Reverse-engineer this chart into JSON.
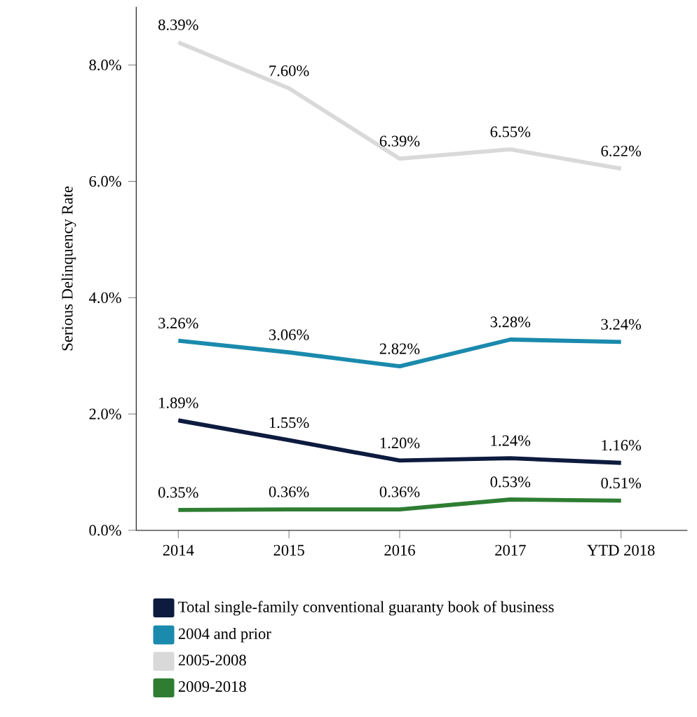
{
  "chart_data": {
    "type": "line",
    "ylabel": "Serious Delinquency Rate",
    "categories": [
      "2014",
      "2015",
      "2016",
      "2017",
      "YTD 2018"
    ],
    "ylim": [
      0,
      9.0
    ],
    "yticks": [
      {
        "value": 0,
        "label": "0.0%"
      },
      {
        "value": 2,
        "label": "2.0%"
      },
      {
        "value": 4,
        "label": "4.0%"
      },
      {
        "value": 6,
        "label": "6.0%"
      },
      {
        "value": 8,
        "label": "8.0%"
      }
    ],
    "series": [
      {
        "name": "Total single-family conventional guaranty book of business",
        "color": "#0d1b3e",
        "values": [
          1.89,
          1.55,
          1.2,
          1.24,
          1.16
        ],
        "value_labels": [
          "1.89%",
          "1.55%",
          "1.20%",
          "1.24%",
          "1.16%"
        ]
      },
      {
        "name": "2004 and prior",
        "color": "#1a8aad",
        "values": [
          3.26,
          3.06,
          2.82,
          3.28,
          3.24
        ],
        "value_labels": [
          "3.26%",
          "3.06%",
          "2.82%",
          "3.28%",
          "3.24%"
        ]
      },
      {
        "name": "2005-2008",
        "color": "#d9d9d9",
        "values": [
          8.39,
          7.6,
          6.39,
          6.55,
          6.22
        ],
        "value_labels": [
          "8.39%",
          "7.60%",
          "6.39%",
          "6.55%",
          "6.22%"
        ]
      },
      {
        "name": "2009-2018",
        "color": "#2e7d32",
        "values": [
          0.35,
          0.36,
          0.36,
          0.53,
          0.51
        ],
        "value_labels": [
          "0.35%",
          "0.36%",
          "0.36%",
          "0.53%",
          "0.51%"
        ]
      }
    ],
    "grid": false,
    "legend": "bottom",
    "marker": "none",
    "line_style": "solid"
  }
}
